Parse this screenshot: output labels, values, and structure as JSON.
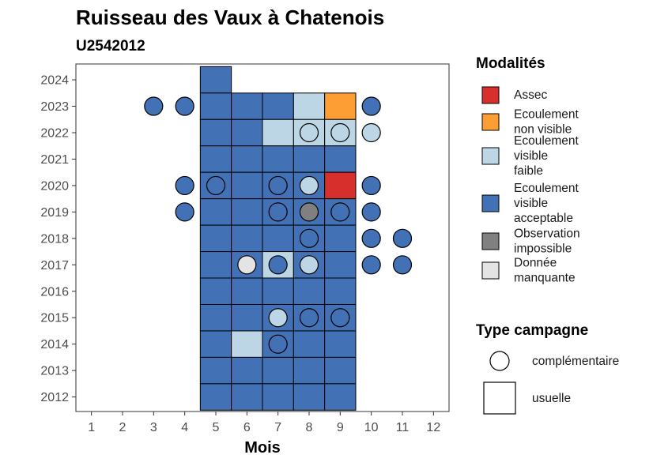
{
  "chart_data": {
    "type": "heatmap",
    "title": "Ruisseau des Vaux à Chatenois",
    "subtitle": "U2542012",
    "xlabel": "Mois",
    "ylabel": "",
    "x_ticks": [
      "1",
      "2",
      "3",
      "4",
      "5",
      "6",
      "7",
      "8",
      "9",
      "10",
      "11",
      "12"
    ],
    "y_ticks": [
      "2012",
      "2013",
      "2014",
      "2015",
      "2016",
      "2017",
      "2018",
      "2019",
      "2020",
      "2021",
      "2022",
      "2023",
      "2024"
    ],
    "xlim": [
      0.5,
      12.5
    ],
    "ylim": [
      2011.45,
      2024.6
    ],
    "grid": false,
    "legend_placement": "right",
    "legend_modalites_title": "Modalités",
    "legend_type_title": "Type campagne",
    "modalites": [
      {
        "key": "assec",
        "lines": [
          "Assec"
        ],
        "color": "#d7302c"
      },
      {
        "key": "nonvisible",
        "lines": [
          "Ecoulement",
          "non visible"
        ],
        "color": "#fc9e33"
      },
      {
        "key": "faible",
        "lines": [
          "Ecoulement",
          "visible",
          "faible"
        ],
        "color": "#bcd6e5"
      },
      {
        "key": "acceptable",
        "lines": [
          "Ecoulement",
          "visible",
          "acceptable"
        ],
        "color": "#4271b5"
      },
      {
        "key": "impossible",
        "lines": [
          "Observation",
          "impossible"
        ],
        "color": "#808080"
      },
      {
        "key": "manquante",
        "lines": [
          "Donnée",
          "manquante"
        ],
        "color": "#e4e4e4"
      }
    ],
    "type_campagne": [
      {
        "key": "complementaire",
        "label": "complémentaire",
        "shape": "circle"
      },
      {
        "key": "usuelle",
        "label": "usuelle",
        "shape": "square"
      }
    ],
    "usuelle": [
      {
        "year": 2024,
        "month": 5,
        "status": "acceptable"
      },
      {
        "year": 2023,
        "month": 5,
        "status": "acceptable"
      },
      {
        "year": 2023,
        "month": 6,
        "status": "acceptable"
      },
      {
        "year": 2023,
        "month": 7,
        "status": "acceptable"
      },
      {
        "year": 2023,
        "month": 8,
        "status": "faible"
      },
      {
        "year": 2023,
        "month": 9,
        "status": "nonvisible"
      },
      {
        "year": 2022,
        "month": 5,
        "status": "acceptable"
      },
      {
        "year": 2022,
        "month": 6,
        "status": "acceptable"
      },
      {
        "year": 2022,
        "month": 7,
        "status": "faible"
      },
      {
        "year": 2022,
        "month": 8,
        "status": "faible"
      },
      {
        "year": 2022,
        "month": 9,
        "status": "faible"
      },
      {
        "year": 2021,
        "month": 5,
        "status": "acceptable"
      },
      {
        "year": 2021,
        "month": 6,
        "status": "acceptable"
      },
      {
        "year": 2021,
        "month": 7,
        "status": "acceptable"
      },
      {
        "year": 2021,
        "month": 8,
        "status": "acceptable"
      },
      {
        "year": 2021,
        "month": 9,
        "status": "acceptable"
      },
      {
        "year": 2020,
        "month": 5,
        "status": "acceptable"
      },
      {
        "year": 2020,
        "month": 6,
        "status": "acceptable"
      },
      {
        "year": 2020,
        "month": 7,
        "status": "acceptable"
      },
      {
        "year": 2020,
        "month": 8,
        "status": "acceptable"
      },
      {
        "year": 2020,
        "month": 9,
        "status": "assec"
      },
      {
        "year": 2019,
        "month": 5,
        "status": "acceptable"
      },
      {
        "year": 2019,
        "month": 6,
        "status": "acceptable"
      },
      {
        "year": 2019,
        "month": 7,
        "status": "acceptable"
      },
      {
        "year": 2019,
        "month": 8,
        "status": "acceptable"
      },
      {
        "year": 2019,
        "month": 9,
        "status": "acceptable"
      },
      {
        "year": 2018,
        "month": 5,
        "status": "acceptable"
      },
      {
        "year": 2018,
        "month": 6,
        "status": "acceptable"
      },
      {
        "year": 2018,
        "month": 7,
        "status": "acceptable"
      },
      {
        "year": 2018,
        "month": 8,
        "status": "acceptable"
      },
      {
        "year": 2018,
        "month": 9,
        "status": "acceptable"
      },
      {
        "year": 2017,
        "month": 5,
        "status": "acceptable"
      },
      {
        "year": 2017,
        "month": 6,
        "status": "acceptable"
      },
      {
        "year": 2017,
        "month": 7,
        "status": "faible"
      },
      {
        "year": 2017,
        "month": 8,
        "status": "acceptable"
      },
      {
        "year": 2017,
        "month": 9,
        "status": "acceptable"
      },
      {
        "year": 2016,
        "month": 5,
        "status": "acceptable"
      },
      {
        "year": 2016,
        "month": 6,
        "status": "acceptable"
      },
      {
        "year": 2016,
        "month": 7,
        "status": "acceptable"
      },
      {
        "year": 2016,
        "month": 8,
        "status": "acceptable"
      },
      {
        "year": 2016,
        "month": 9,
        "status": "acceptable"
      },
      {
        "year": 2015,
        "month": 5,
        "status": "acceptable"
      },
      {
        "year": 2015,
        "month": 6,
        "status": "acceptable"
      },
      {
        "year": 2015,
        "month": 7,
        "status": "acceptable"
      },
      {
        "year": 2015,
        "month": 8,
        "status": "acceptable"
      },
      {
        "year": 2015,
        "month": 9,
        "status": "acceptable"
      },
      {
        "year": 2014,
        "month": 5,
        "status": "acceptable"
      },
      {
        "year": 2014,
        "month": 6,
        "status": "faible"
      },
      {
        "year": 2014,
        "month": 7,
        "status": "acceptable"
      },
      {
        "year": 2014,
        "month": 8,
        "status": "acceptable"
      },
      {
        "year": 2014,
        "month": 9,
        "status": "acceptable"
      },
      {
        "year": 2013,
        "month": 5,
        "status": "acceptable"
      },
      {
        "year": 2013,
        "month": 6,
        "status": "acceptable"
      },
      {
        "year": 2013,
        "month": 7,
        "status": "acceptable"
      },
      {
        "year": 2013,
        "month": 8,
        "status": "acceptable"
      },
      {
        "year": 2013,
        "month": 9,
        "status": "acceptable"
      },
      {
        "year": 2012,
        "month": 5,
        "status": "acceptable"
      },
      {
        "year": 2012,
        "month": 6,
        "status": "acceptable"
      },
      {
        "year": 2012,
        "month": 7,
        "status": "acceptable"
      },
      {
        "year": 2012,
        "month": 8,
        "status": "acceptable"
      },
      {
        "year": 2012,
        "month": 9,
        "status": "acceptable"
      }
    ],
    "complementaire": [
      {
        "year": 2023,
        "month": 3,
        "status": "acceptable"
      },
      {
        "year": 2023,
        "month": 4,
        "status": "acceptable"
      },
      {
        "year": 2023,
        "month": 10,
        "status": "acceptable"
      },
      {
        "year": 2022,
        "month": 8,
        "status": "faible"
      },
      {
        "year": 2022,
        "month": 9,
        "status": "faible"
      },
      {
        "year": 2022,
        "month": 10,
        "status": "faible"
      },
      {
        "year": 2020,
        "month": 4,
        "status": "acceptable"
      },
      {
        "year": 2020,
        "month": 5,
        "status": "acceptable"
      },
      {
        "year": 2020,
        "month": 7,
        "status": "acceptable"
      },
      {
        "year": 2020,
        "month": 8,
        "status": "faible"
      },
      {
        "year": 2020,
        "month": 10,
        "status": "acceptable"
      },
      {
        "year": 2019,
        "month": 4,
        "status": "acceptable"
      },
      {
        "year": 2019,
        "month": 7,
        "status": "acceptable"
      },
      {
        "year": 2019,
        "month": 8,
        "status": "impossible"
      },
      {
        "year": 2019,
        "month": 9,
        "status": "acceptable"
      },
      {
        "year": 2019,
        "month": 10,
        "status": "acceptable"
      },
      {
        "year": 2018,
        "month": 8,
        "status": "acceptable"
      },
      {
        "year": 2018,
        "month": 10,
        "status": "acceptable"
      },
      {
        "year": 2018,
        "month": 11,
        "status": "acceptable"
      },
      {
        "year": 2017,
        "month": 6,
        "status": "manquante"
      },
      {
        "year": 2017,
        "month": 7,
        "status": "acceptable"
      },
      {
        "year": 2017,
        "month": 8,
        "status": "faible"
      },
      {
        "year": 2017,
        "month": 10,
        "status": "acceptable"
      },
      {
        "year": 2017,
        "month": 11,
        "status": "acceptable"
      },
      {
        "year": 2015,
        "month": 7,
        "status": "faible"
      },
      {
        "year": 2015,
        "month": 8,
        "status": "acceptable"
      },
      {
        "year": 2015,
        "month": 9,
        "status": "acceptable"
      },
      {
        "year": 2014,
        "month": 7,
        "status": "acceptable"
      }
    ]
  }
}
